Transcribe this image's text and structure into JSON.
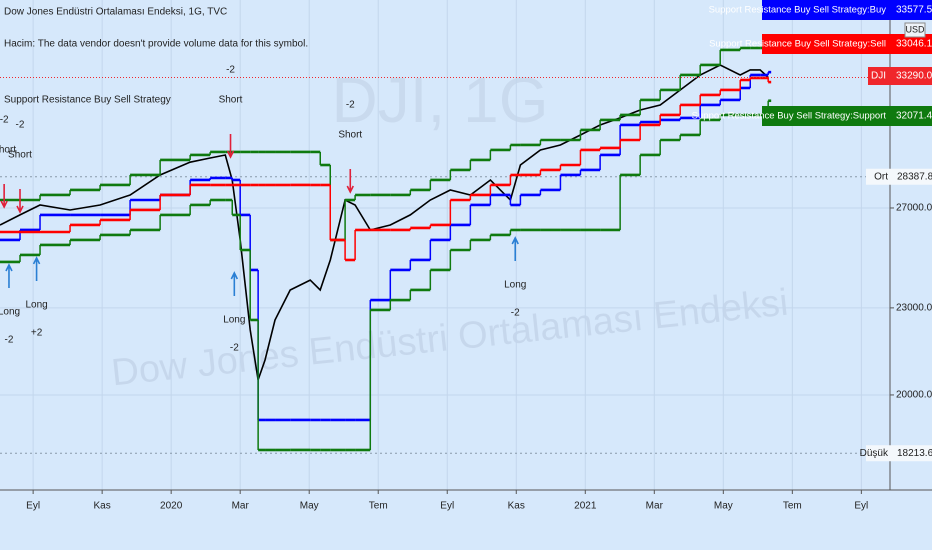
{
  "header": {
    "title": "Dow Jones Endüstri Ortalaması Endeksi, 1G, TVC",
    "volume_note": "Hacim: The data vendor doesn't provide volume data for this symbol.",
    "indicator": "Support Resistance Buy Sell Strategy"
  },
  "watermark": {
    "symbol": "DJI, 1G",
    "description": "Dow Jones Endüstri Ortalaması Endeksi"
  },
  "chart_data": {
    "type": "line",
    "log_scale": true,
    "grid": true,
    "currency": "USD",
    "x": [
      -0.96,
      -0.38,
      0.2,
      1.07,
      1.94,
      2.81,
      3.68,
      4.55,
      5.13,
      5.57,
      5.77,
      6.0,
      6.29,
      6.52,
      6.72,
      7.01,
      7.45,
      8.03,
      8.32,
      8.61,
      9.04,
      9.33,
      9.77,
      10.35,
      10.93,
      11.51,
      12.09,
      12.67,
      13.25,
      13.83,
      14.12,
      14.7,
      15.28,
      15.86,
      16.43,
      17.01,
      17.59,
      18.17,
      18.75,
      19.33,
      19.91,
      20.49,
      20.78,
      21.07,
      21.3
    ],
    "xlim": [
      -0.96,
      24.83
    ],
    "xticks": [
      {
        "value": 0,
        "label": "Eyl"
      },
      {
        "value": 2,
        "label": "Kas"
      },
      {
        "value": 4,
        "label": "2020"
      },
      {
        "value": 6,
        "label": "Mar"
      },
      {
        "value": 8,
        "label": "May"
      },
      {
        "value": 10,
        "label": "Tem"
      },
      {
        "value": 12,
        "label": "Eyl"
      },
      {
        "value": 14,
        "label": "Kas"
      },
      {
        "value": 16,
        "label": "2021"
      },
      {
        "value": 18,
        "label": "Mar"
      },
      {
        "value": 20,
        "label": "May"
      },
      {
        "value": 22,
        "label": "Tem"
      },
      {
        "value": 24,
        "label": "Eyl"
      }
    ],
    "ylim": [
      17170,
      37700
    ],
    "yticks": [
      {
        "value": 20000,
        "label": "20000.00"
      },
      {
        "value": 23000,
        "label": "23000.00"
      },
      {
        "value": 27000,
        "label": "27000.00"
      }
    ],
    "series": [
      {
        "name": "DJI",
        "color": "#000000",
        "label_color": "#f0262b",
        "step": false,
        "values": [
          26273,
          26700,
          27130,
          26914,
          27130,
          27569,
          28469,
          29060,
          29257,
          29398,
          28242,
          25648,
          22200,
          20490,
          21150,
          22558,
          23671,
          24050,
          23671,
          24838,
          27348,
          27130,
          26063,
          26273,
          26700,
          27348,
          27791,
          27569,
          28242,
          27348,
          28928,
          29635,
          29873,
          30356,
          30848,
          31198,
          31599,
          31855,
          32630,
          33426,
          33966,
          33426,
          33697,
          33697,
          33290.09
        ]
      },
      {
        "color": "#0f7a0f",
        "step": true,
        "values": [
          27348,
          27348,
          27569,
          27791,
          28015,
          28469,
          29163,
          29398,
          29541,
          29541,
          29541,
          29541,
          29541,
          29541,
          29541,
          29541,
          29541,
          29541,
          28928,
          25648,
          27348,
          27569,
          27569,
          27569,
          27791,
          28242,
          28698,
          29163,
          29635,
          29873,
          29873,
          30113,
          30113,
          30602,
          31099,
          31347,
          32111,
          32630,
          33426,
          33966,
          34795,
          34906,
          34906,
          34906,
          34906
        ]
      },
      {
        "name": "Support Resistance Buy Sell Strategy:Buy",
        "color": "#0000ff",
        "step": true,
        "values": [
          25648,
          26063,
          26700,
          26700,
          26700,
          27348,
          27569,
          28242,
          28333,
          28333,
          28242,
          26700,
          24443,
          19213,
          19213,
          19213,
          19213,
          19213,
          19213,
          19213,
          19213,
          19213,
          23292,
          24443,
          24838,
          25648,
          26273,
          27130,
          27569,
          27130,
          27569,
          27791,
          28469,
          28698,
          29398,
          30848,
          30996,
          31099,
          31198,
          31855,
          32111,
          32735,
          33426,
          33426,
          33577.58
        ]
      },
      {
        "name": "Support Resistance Buy Sell Strategy:Sell",
        "color": "#ff0000",
        "step": true,
        "values": [
          25979,
          25979,
          25979,
          26273,
          26485,
          26914,
          27569,
          28015,
          28015,
          28015,
          28015,
          28015,
          28015,
          28015,
          28015,
          28015,
          28015,
          28015,
          28015,
          25648,
          24838,
          26063,
          26063,
          26063,
          26147,
          26273,
          27348,
          27569,
          28015,
          28469,
          28469,
          28698,
          28928,
          29635,
          29730,
          30113,
          30848,
          31347,
          31855,
          32370,
          32630,
          33158,
          33265,
          33265,
          33046.18
        ]
      },
      {
        "name": "Support Resistance Buy Sell Strategy:Support",
        "color": "#0f7a0f",
        "step": true,
        "values": [
          24759,
          25039,
          25443,
          25648,
          25855,
          26063,
          26700,
          27130,
          27348,
          27348,
          26700,
          25239,
          22558,
          18309,
          18309,
          18309,
          18309,
          18309,
          18309,
          18309,
          18309,
          18309,
          22923,
          23292,
          23671,
          24443,
          25239,
          25648,
          25855,
          26063,
          26063,
          26063,
          26063,
          26063,
          26063,
          28469,
          29398,
          30113,
          30356,
          31099,
          31347,
          31347,
          31347,
          31347,
          32071.41
        ]
      }
    ],
    "price_lines": [
      {
        "label": "Ort",
        "value": 28387.82
      },
      {
        "label": "Düşük",
        "value": 18213.65
      }
    ],
    "signals": [
      {
        "side": "Short",
        "qty": "-2",
        "x": 5.72,
        "price": 29163
      },
      {
        "side": "Short",
        "qty": "-2",
        "x": 9.19,
        "price": 27569
      },
      {
        "side": "Short",
        "qty": "-2",
        "x": -0.84,
        "price": 26914
      },
      {
        "side": "Short",
        "qty": "-2",
        "x": -0.38,
        "price": 26700
      },
      {
        "side": "Long",
        "qty": "-2",
        "x": 5.83,
        "price": 24443
      },
      {
        "side": "Long",
        "qty": "-2",
        "x": 13.97,
        "price": 25855
      },
      {
        "side": "Long",
        "qty": "+2",
        "x": 0.1,
        "price": 25039
      },
      {
        "side": "Long",
        "qty": "-2",
        "x": -0.7,
        "price": 24759
      }
    ]
  }
}
